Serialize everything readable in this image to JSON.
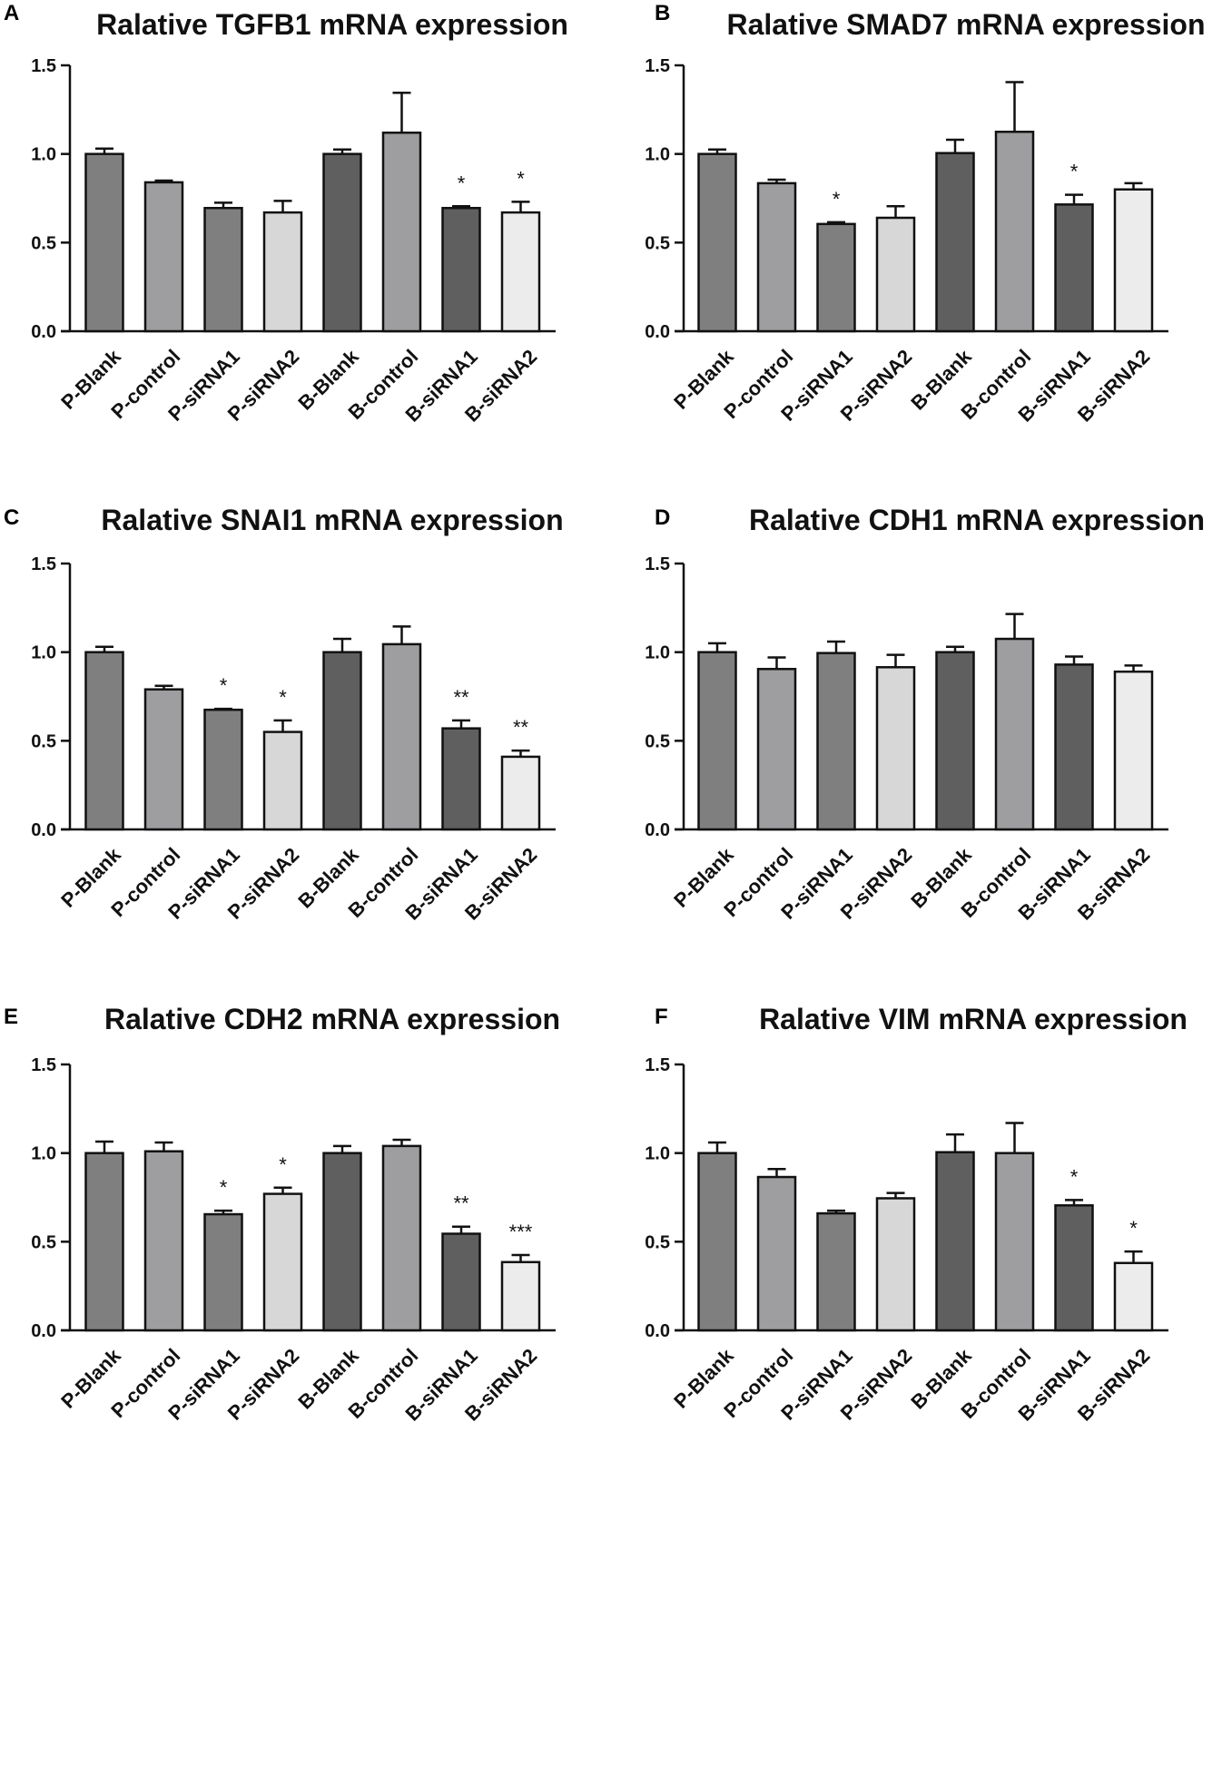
{
  "figure_labels": [
    "A",
    "B",
    "C",
    "D",
    "E",
    "F"
  ],
  "chart_data": [
    {
      "type": "bar",
      "panel": "A",
      "title": "Ralative TGFB1 mRNA expression",
      "categories": [
        "P-Blank",
        "P-control",
        "P-siRNA1",
        "P-siRNA2",
        "B-Blank",
        "B-control",
        "B-siRNA1",
        "B-siRNA2"
      ],
      "values": [
        1.0,
        0.84,
        0.695,
        0.67,
        1.0,
        1.12,
        0.695,
        0.67
      ],
      "errors": [
        0.03,
        0.01,
        0.03,
        0.065,
        0.025,
        0.225,
        0.01,
        0.06
      ],
      "significance": [
        "",
        "",
        "",
        "",
        "",
        "",
        "*",
        "*"
      ],
      "ylim": [
        0,
        1.5
      ],
      "yticks": [
        "0.0",
        "0.5",
        "1.0",
        "1.5"
      ],
      "xlabel": "",
      "ylabel": ""
    },
    {
      "type": "bar",
      "panel": "B",
      "title": "Ralative SMAD7 mRNA expression",
      "categories": [
        "P-Blank",
        "P-control",
        "P-siRNA1",
        "P-siRNA2",
        "B-Blank",
        "B-control",
        "B-siRNA1",
        "B-siRNA2"
      ],
      "values": [
        1.0,
        0.835,
        0.605,
        0.64,
        1.005,
        1.125,
        0.715,
        0.8
      ],
      "errors": [
        0.025,
        0.02,
        0.01,
        0.065,
        0.075,
        0.28,
        0.055,
        0.035
      ],
      "significance": [
        "",
        "",
        "*",
        "",
        "",
        "",
        "*",
        ""
      ],
      "ylim": [
        0,
        1.5
      ],
      "yticks": [
        "0.0",
        "0.5",
        "1.0",
        "1.5"
      ],
      "xlabel": "",
      "ylabel": ""
    },
    {
      "type": "bar",
      "panel": "C",
      "title": "Ralative SNAI1 mRNA expression",
      "categories": [
        "P-Blank",
        "P-control",
        "P-siRNA1",
        "P-siRNA2",
        "B-Blank",
        "B-control",
        "B-siRNA1",
        "B-siRNA2"
      ],
      "values": [
        1.0,
        0.79,
        0.675,
        0.55,
        1.0,
        1.045,
        0.57,
        0.41
      ],
      "errors": [
        0.03,
        0.02,
        0.005,
        0.065,
        0.075,
        0.1,
        0.045,
        0.035
      ],
      "significance": [
        "",
        "",
        "*",
        "*",
        "",
        "",
        "**",
        "**"
      ],
      "ylim": [
        0,
        1.5
      ],
      "yticks": [
        "0.0",
        "0.5",
        "1.0",
        "1.5"
      ],
      "xlabel": "",
      "ylabel": ""
    },
    {
      "type": "bar",
      "panel": "D",
      "title": "Ralative CDH1 mRNA expression",
      "categories": [
        "P-Blank",
        "P-control",
        "P-siRNA1",
        "P-siRNA2",
        "B-Blank",
        "B-control",
        "B-siRNA1",
        "B-siRNA2"
      ],
      "values": [
        1.0,
        0.905,
        0.995,
        0.915,
        1.0,
        1.075,
        0.93,
        0.89
      ],
      "errors": [
        0.05,
        0.065,
        0.065,
        0.07,
        0.03,
        0.14,
        0.045,
        0.035
      ],
      "significance": [
        "",
        "",
        "",
        "",
        "",
        "",
        "",
        ""
      ],
      "ylim": [
        0,
        1.5
      ],
      "yticks": [
        "0.0",
        "0.5",
        "1.0",
        "1.5"
      ],
      "xlabel": "",
      "ylabel": ""
    },
    {
      "type": "bar",
      "panel": "E",
      "title": "Ralative CDH2 mRNA expression",
      "categories": [
        "P-Blank",
        "P-control",
        "P-siRNA1",
        "P-siRNA2",
        "B-Blank",
        "B-control",
        "B-siRNA1",
        "B-siRNA2"
      ],
      "values": [
        1.0,
        1.01,
        0.655,
        0.77,
        1.0,
        1.04,
        0.545,
        0.385
      ],
      "errors": [
        0.065,
        0.05,
        0.02,
        0.035,
        0.04,
        0.035,
        0.04,
        0.04
      ],
      "significance": [
        "",
        "",
        "*",
        "*",
        "",
        "",
        "**",
        "***"
      ],
      "ylim": [
        0,
        1.5
      ],
      "yticks": [
        "0.0",
        "0.5",
        "1.0",
        "1.5"
      ],
      "xlabel": "",
      "ylabel": ""
    },
    {
      "type": "bar",
      "panel": "F",
      "title": "Ralative VIM mRNA expression",
      "categories": [
        "P-Blank",
        "P-control",
        "P-siRNA1",
        "P-siRNA2",
        "B-Blank",
        "B-control",
        "B-siRNA1",
        "B-siRNA2"
      ],
      "values": [
        1.0,
        0.865,
        0.66,
        0.745,
        1.005,
        1.0,
        0.705,
        0.38
      ],
      "errors": [
        0.06,
        0.045,
        0.015,
        0.03,
        0.1,
        0.17,
        0.03,
        0.065
      ],
      "significance": [
        "",
        "",
        "",
        "",
        "",
        "",
        "*",
        "*"
      ],
      "ylim": [
        0,
        1.5
      ],
      "yticks": [
        "0.0",
        "0.5",
        "1.0",
        "1.5"
      ],
      "xlabel": "",
      "ylabel": ""
    }
  ],
  "colors": {
    "bar_fills": [
      "#7f7f7f",
      "#9e9ea0",
      "#7f7f7f",
      "#d7d7d7",
      "#5f5f5f",
      "#9e9ea0",
      "#5f5f5f",
      "#ececec"
    ],
    "stroke": "#111111",
    "background": "#ffffff"
  }
}
